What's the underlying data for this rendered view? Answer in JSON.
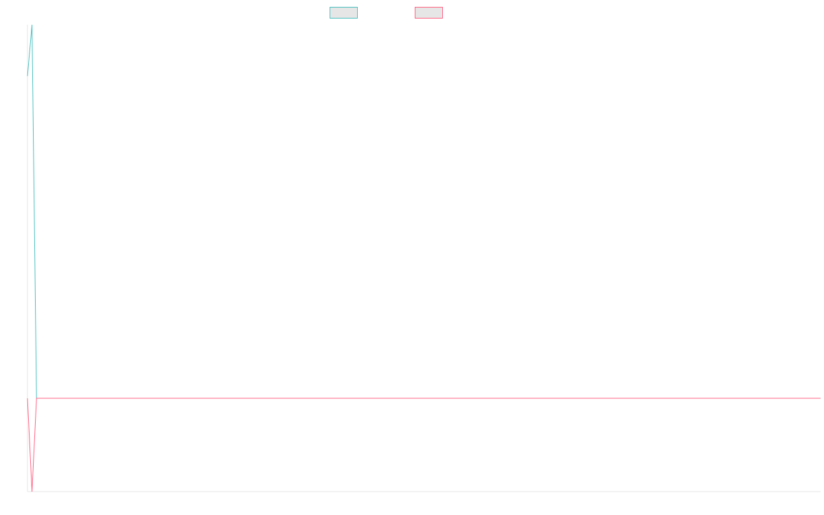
{
  "chart_data": {
    "type": "line",
    "title": "",
    "xlabel": "",
    "ylabel": "",
    "legend_position": "top-center",
    "grid": false,
    "x_count": 176,
    "xlim": [
      0,
      175
    ],
    "ylim": [
      -20,
      80
    ],
    "series": [
      {
        "color": "#4bc0c0",
        "fill": "#e6e6e6",
        "values": [
          69,
          80,
          0
        ]
      },
      {
        "color": "#ff6384",
        "fill": "#e6e6e6",
        "values": [
          0,
          -20,
          0
        ]
      }
    ]
  }
}
